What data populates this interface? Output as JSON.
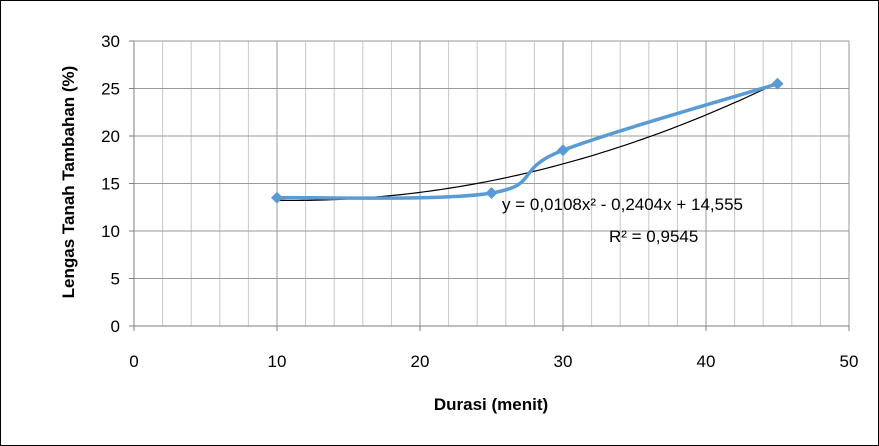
{
  "chart_data": {
    "type": "scatter",
    "title": "",
    "xlabel": "Durasi (menit)",
    "ylabel": "Lengas Tanah Tambahan (%)",
    "xlim": [
      0,
      50
    ],
    "ylim": [
      0,
      30
    ],
    "x_ticks": [
      "0",
      "10",
      "20",
      "30",
      "40",
      "50"
    ],
    "y_ticks": [
      "0",
      "5",
      "10",
      "15",
      "20",
      "25",
      "30"
    ],
    "grid": true,
    "legend": "none",
    "series": [
      {
        "x": [
          10,
          25,
          30,
          45
        ],
        "y": [
          13.5,
          14,
          18.5,
          25.5
        ],
        "color": "#5b9bd5",
        "marker": "diamond",
        "line": "smooth"
      }
    ],
    "trendline": {
      "type": "polynomial",
      "order": 2,
      "coefficients": [
        0.0108,
        -0.2404,
        14.555
      ],
      "x_range": [
        10,
        45
      ],
      "color": "#000000",
      "equation_label": "y = 0,0108x² - 0,2404x + 14,555",
      "r2_label": "R² = 0,9545"
    }
  }
}
